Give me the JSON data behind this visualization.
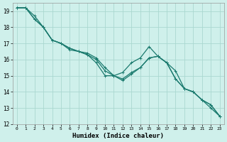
{
  "xlabel": "Humidex (Indice chaleur)",
  "background_color": "#cff0eb",
  "grid_color": "#aad8d0",
  "line_color": "#1a7a6e",
  "xlim": [
    -0.5,
    23.5
  ],
  "ylim": [
    12,
    19.5
  ],
  "xtick_labels": [
    "0",
    "1",
    "2",
    "3",
    "4",
    "5",
    "6",
    "7",
    "8",
    "9",
    "10",
    "11",
    "12",
    "13",
    "14",
    "15",
    "16",
    "17",
    "18",
    "19",
    "20",
    "21",
    "22",
    "23"
  ],
  "ytick_labels": [
    "12",
    "13",
    "14",
    "15",
    "16",
    "17",
    "18",
    "19"
  ],
  "ytick_vals": [
    12,
    13,
    14,
    15,
    16,
    17,
    18,
    19
  ],
  "series_top": [
    19.2,
    19.2,
    18.5,
    18.0,
    17.2,
    17.0,
    16.7,
    16.5,
    16.3,
    15.8,
    15.0,
    15.0,
    14.8,
    15.2,
    15.5,
    16.1,
    16.2,
    15.8,
    15.3,
    14.2,
    14.0,
    13.5,
    13.2,
    12.5
  ],
  "series_mid": [
    19.2,
    19.2,
    18.7,
    18.0,
    17.2,
    17.0,
    16.7,
    16.5,
    16.4,
    16.1,
    15.5,
    15.0,
    15.2,
    15.8,
    16.1,
    16.8,
    16.2,
    15.8,
    14.8,
    14.2,
    14.0,
    13.5,
    13.2,
    12.5
  ],
  "series_bot": [
    19.2,
    19.2,
    18.5,
    18.0,
    17.2,
    17.0,
    16.6,
    16.5,
    16.3,
    16.0,
    15.3,
    15.0,
    14.7,
    15.1,
    15.5,
    16.1,
    16.2,
    15.8,
    14.8,
    14.2,
    14.0,
    13.5,
    13.0,
    12.5
  ]
}
